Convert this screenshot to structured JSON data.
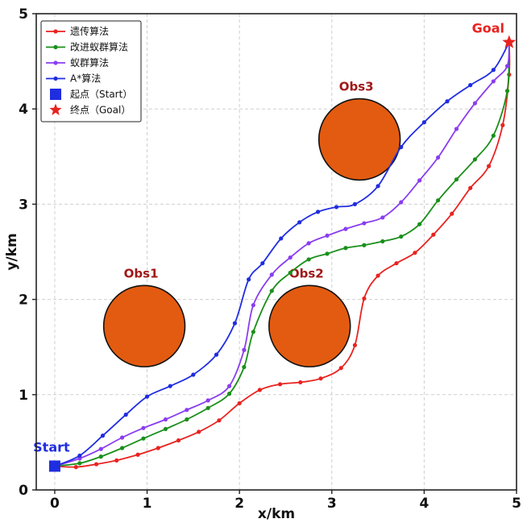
{
  "chart_data": {
    "type": "line",
    "xlabel": "x/km",
    "ylabel": "y/km",
    "xlim": [
      -0.2,
      5.0
    ],
    "ylim": [
      0,
      5
    ],
    "xticks": [
      "0",
      "1",
      "2",
      "3",
      "4",
      "5"
    ],
    "yticks": [
      "0",
      "1",
      "2",
      "3",
      "4",
      "5"
    ],
    "grid": true,
    "legend_position": "top-left",
    "series": [
      {
        "name": "遗传算法",
        "color": "#e8231f",
        "x": [
          0,
          0.23,
          0.45,
          0.67,
          0.9,
          1.12,
          1.34,
          1.56,
          1.78,
          2.0,
          2.22,
          2.44,
          2.66,
          2.88,
          3.1,
          3.25,
          3.35,
          3.5,
          3.7,
          3.9,
          4.1,
          4.3,
          4.5,
          4.7,
          4.85,
          4.92
        ],
        "y": [
          0.25,
          0.24,
          0.27,
          0.31,
          0.37,
          0.44,
          0.52,
          0.61,
          0.73,
          0.91,
          1.05,
          1.11,
          1.13,
          1.17,
          1.28,
          1.52,
          2.01,
          2.25,
          2.38,
          2.49,
          2.68,
          2.9,
          3.17,
          3.4,
          3.83,
          4.36
        ],
        "end": [
          4.92,
          4.7
        ]
      },
      {
        "name": "改进蚁群算法",
        "color": "#1a8f1a",
        "x": [
          0,
          0.27,
          0.5,
          0.73,
          0.96,
          1.2,
          1.43,
          1.66,
          1.89,
          2.05,
          2.15,
          2.35,
          2.55,
          2.75,
          2.95,
          3.15,
          3.35,
          3.55,
          3.75,
          3.95,
          4.15,
          4.35,
          4.55,
          4.75,
          4.9
        ],
        "y": [
          0.25,
          0.28,
          0.35,
          0.44,
          0.54,
          0.64,
          0.74,
          0.86,
          1.01,
          1.29,
          1.66,
          2.09,
          2.28,
          2.42,
          2.48,
          2.54,
          2.57,
          2.61,
          2.66,
          2.79,
          3.04,
          3.26,
          3.47,
          3.72,
          4.19
        ],
        "end": [
          4.92,
          4.7
        ]
      },
      {
        "name": "蚁群算法",
        "color": "#8a3df0",
        "x": [
          0,
          0.27,
          0.5,
          0.73,
          0.96,
          1.2,
          1.43,
          1.66,
          1.89,
          2.05,
          2.15,
          2.35,
          2.55,
          2.75,
          2.95,
          3.15,
          3.35,
          3.55,
          3.75,
          3.95,
          4.15,
          4.35,
          4.55,
          4.75,
          4.9
        ],
        "y": [
          0.25,
          0.33,
          0.43,
          0.55,
          0.65,
          0.74,
          0.84,
          0.94,
          1.09,
          1.47,
          1.94,
          2.26,
          2.44,
          2.59,
          2.67,
          2.74,
          2.8,
          2.86,
          3.02,
          3.25,
          3.49,
          3.79,
          4.06,
          4.29,
          4.45
        ],
        "end": [
          4.92,
          4.7
        ]
      },
      {
        "name": "A*算法",
        "color": "#1f2de0",
        "x": [
          0,
          0.27,
          0.52,
          0.77,
          1.0,
          1.25,
          1.5,
          1.75,
          1.95,
          2.1,
          2.25,
          2.45,
          2.65,
          2.85,
          3.05,
          3.25,
          3.5,
          3.75,
          4.0,
          4.25,
          4.5,
          4.75
        ],
        "y": [
          0.25,
          0.36,
          0.57,
          0.79,
          0.98,
          1.09,
          1.21,
          1.42,
          1.75,
          2.21,
          2.38,
          2.64,
          2.81,
          2.92,
          2.97,
          3.0,
          3.19,
          3.6,
          3.86,
          4.08,
          4.25,
          4.41
        ],
        "end": [
          4.92,
          4.7
        ]
      }
    ],
    "start": {
      "label": "Start",
      "legend": "起点（Start）",
      "x": 0,
      "y": 0.25,
      "color": "#1f2de0"
    },
    "goal": {
      "label": "Goal",
      "legend": "终点（Goal）",
      "x": 4.92,
      "y": 4.7,
      "color": "#e8231f"
    },
    "obstacles": [
      {
        "label": "Obs1",
        "cx": 0.97,
        "cy": 1.72,
        "r": 0.44,
        "color": "#e35b10"
      },
      {
        "label": "Obs2",
        "cx": 2.76,
        "cy": 1.72,
        "r": 0.44,
        "color": "#e35b10"
      },
      {
        "label": "Obs3",
        "cx": 3.3,
        "cy": 3.68,
        "r": 0.44,
        "color": "#e35b10"
      }
    ],
    "obstacle_label_color": "#a01818"
  }
}
